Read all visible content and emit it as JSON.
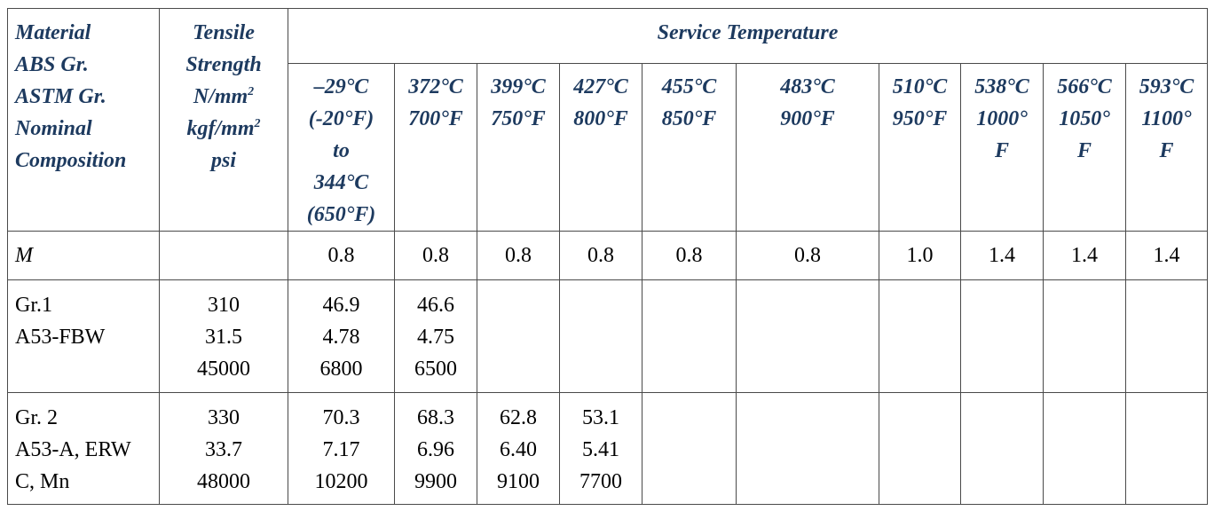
{
  "headers": {
    "material": [
      "Material",
      "ABS Gr.",
      "ASTM Gr.",
      "Nominal",
      "Composition"
    ],
    "tensile": [
      "Tensile",
      "Strength",
      "N/mm",
      "kgf/mm",
      "psi"
    ],
    "tensile_sup": "2",
    "service_temperature": "Service Temperature",
    "temps": [
      [
        "–29°C",
        "(-20°F)",
        "to",
        "344°C",
        "(650°F)"
      ],
      [
        "372°C",
        "700°F"
      ],
      [
        "399°C",
        "750°F"
      ],
      [
        "427°C",
        "800°F"
      ],
      [
        "455°C",
        "850°F"
      ],
      [
        "483°C",
        "900°F"
      ],
      [
        "510°C",
        "950°F"
      ],
      [
        "538°C",
        "1000°",
        "F"
      ],
      [
        "566°C",
        "1050°",
        "F"
      ],
      [
        "593°C",
        "1100°",
        "F"
      ]
    ]
  },
  "m_row": {
    "label": "M",
    "values": [
      "0.8",
      "0.8",
      "0.8",
      "0.8",
      "0.8",
      "0.8",
      "1.0",
      "1.4",
      "1.4",
      "1.4"
    ]
  },
  "rows": [
    {
      "material": [
        "Gr.1",
        "A53-FBW"
      ],
      "tensile": [
        "310",
        "31.5",
        "45000"
      ],
      "values": [
        [
          "46.9",
          "4.78",
          "6800"
        ],
        [
          "46.6",
          "4.75",
          "6500"
        ]
      ]
    },
    {
      "material": [
        "Gr. 2",
        "A53-A, ERW",
        "C, Mn"
      ],
      "tensile": [
        "330",
        "33.7",
        "48000"
      ],
      "values": [
        [
          "70.3",
          "7.17",
          "10200"
        ],
        [
          "68.3",
          "6.96",
          "9900"
        ],
        [
          "62.8",
          "6.40",
          "9100"
        ],
        [
          "53.1",
          "5.41",
          "7700"
        ]
      ]
    }
  ]
}
